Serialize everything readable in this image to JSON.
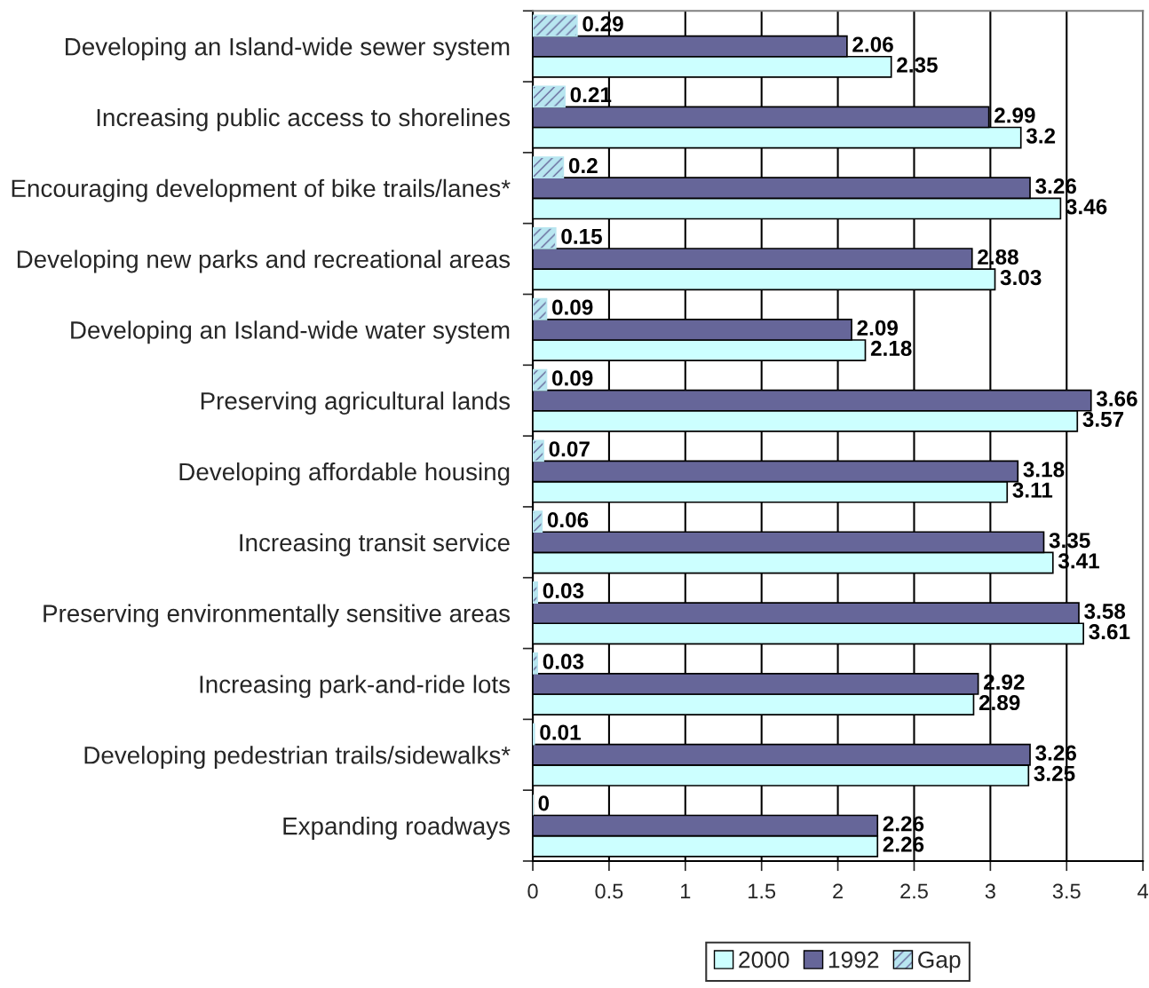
{
  "chart_data": {
    "type": "bar",
    "orientation": "horizontal",
    "categories": [
      "Developing an Island-wide sewer system",
      "Increasing public access to shorelines",
      "Encouraging development of bike trails/lanes*",
      "Developing new parks and recreational areas",
      "Developing an Island-wide water system",
      "Preserving agricultural lands",
      "Developing affordable housing",
      "Increasing transit service",
      "Preserving environmentally sensitive areas",
      "Increasing park-and-ride lots",
      "Developing pedestrian trails/sidewalks*",
      "Expanding roadways"
    ],
    "series": [
      {
        "name": "2000",
        "color": "#ccffff",
        "values": [
          2.35,
          3.2,
          3.46,
          3.03,
          2.18,
          3.57,
          3.11,
          3.41,
          3.61,
          2.89,
          3.25,
          2.26
        ]
      },
      {
        "name": "1992",
        "color": "#666699",
        "values": [
          2.06,
          2.99,
          3.26,
          2.88,
          2.09,
          3.66,
          3.18,
          3.35,
          3.58,
          2.92,
          3.26,
          2.26
        ]
      },
      {
        "name": "Gap",
        "color": "#b8e6f0",
        "values": [
          0.29,
          0.21,
          0.2,
          0.15,
          0.09,
          0.09,
          0.07,
          0.06,
          0.03,
          0.03,
          0.01,
          0
        ]
      }
    ],
    "xlim": [
      0,
      4
    ],
    "xticks": [
      0,
      0.5,
      1,
      1.5,
      2,
      2.5,
      3,
      3.5,
      4
    ],
    "grid": "x",
    "legend": "bottom",
    "data_labels": true
  }
}
